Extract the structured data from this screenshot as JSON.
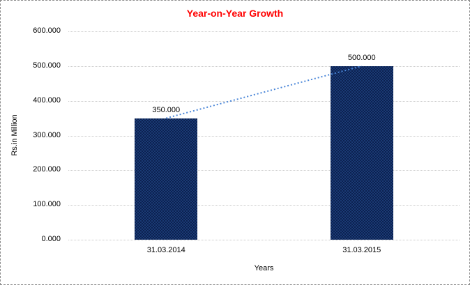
{
  "chart_data": {
    "type": "bar",
    "title": "Year-on-Year Growth",
    "categories": [
      "31.03.2014",
      "31.03.2015"
    ],
    "values": [
      350,
      500
    ],
    "value_labels": [
      "350.000",
      "500.000"
    ],
    "xlabel": "Years",
    "ylabel": "Rs.in Million",
    "ylim": [
      0,
      600
    ],
    "ytick_step": 100,
    "ytick_labels": [
      "0.000",
      "100.000",
      "200.000",
      "300.000",
      "400.000",
      "500.000",
      "600.000"
    ],
    "grid": true,
    "legend": false,
    "trendline": {
      "style": "dotted",
      "color": "#4a86d8",
      "points": [
        [
          0,
          350
        ],
        [
          1,
          500
        ]
      ]
    },
    "colors": {
      "bar": "#122f63",
      "title": "#ff0000",
      "gridline": "#c9c9c9",
      "background": "#ffffff",
      "border": "#8c8c8c"
    }
  }
}
